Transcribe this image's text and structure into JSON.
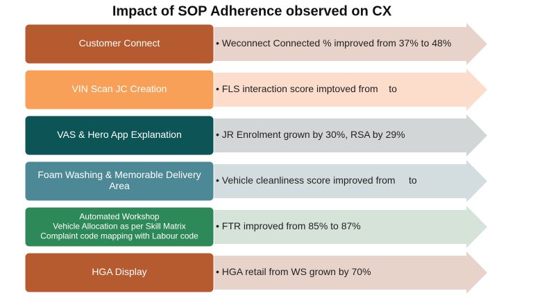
{
  "header": {
    "title": "Impact of SOP Adherence observed on CX"
  },
  "rows": [
    {
      "label": [
        "Customer Connect"
      ],
      "text": "• Weconnect Connected % improved from 37% to 48%"
    },
    {
      "label": [
        "VIN Scan JC Creation"
      ],
      "text": "• FLS interaction score imptoved from    to"
    },
    {
      "label": [
        "VAS & Hero App Explanation"
      ],
      "text": "• JR Enrolment grown by 30%, RSA by 29%"
    },
    {
      "label": [
        "Foam Washing & Memorable Delivery",
        "Area"
      ],
      "text": "• Vehicle cleanliness score improved from     to"
    },
    {
      "label": [
        "Automated Workshop",
        "Vehicle Allocation as per Skill Matrix",
        "Complaint code mapping with Labour code"
      ],
      "text": "• FTR improved from 85% to 87%"
    },
    {
      "label": [
        "HGA Display"
      ],
      "text": "• HGA retail from WS grown by 70%"
    }
  ]
}
